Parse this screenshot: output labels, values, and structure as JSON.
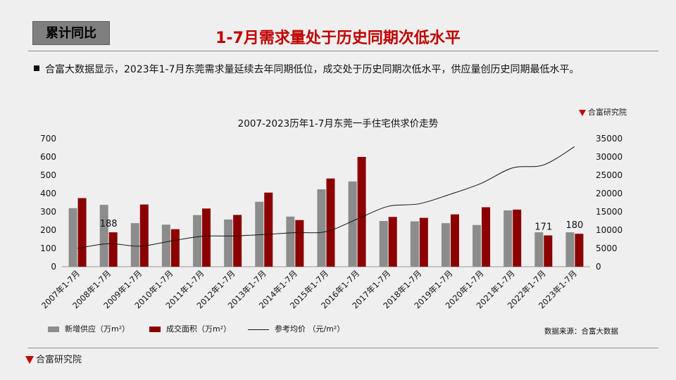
{
  "header": {
    "tag": "累计同比",
    "title": "1-7月需求量处于历史同期次低水平"
  },
  "bullet_text": "合富大数据显示，2023年1-7月东莞需求量延续去年同期低位，成交处于历史同期次低水平，供应量创历史同期最低水平。",
  "brand": "合富研究院",
  "source": "数据来源：合富大数据",
  "colors": {
    "supply": "#8c8c8c",
    "sales": "#8b0000",
    "price": "#111111",
    "title_red": "#c00000"
  },
  "chart_data": {
    "type": "bar",
    "title": "2007-2023历年1-7月东莞一手住宅供求价走势",
    "categories": [
      "2007年1-7月",
      "2008年1-7月",
      "2009年1-7月",
      "2010年1-7月",
      "2011年1-7月",
      "2012年1-7月",
      "2013年1-7月",
      "2014年1-7月",
      "2015年1-7月",
      "2016年1-7月",
      "2017年1-7月",
      "2018年1-7月",
      "2019年1-7月",
      "2020年1-7月",
      "2021年1-7月",
      "2022年1-7月",
      "2023年1-7月"
    ],
    "series": [
      {
        "name": "新增供应（万m²）",
        "type": "bar",
        "axis": "left",
        "values": [
          320,
          338,
          238,
          230,
          282,
          258,
          355,
          274,
          423,
          466,
          250,
          248,
          238,
          228,
          308,
          188,
          188
        ]
      },
      {
        "name": "成交面积（万m²）",
        "type": "bar",
        "axis": "left",
        "values": [
          375,
          188,
          340,
          205,
          318,
          283,
          405,
          255,
          482,
          600,
          272,
          267,
          286,
          325,
          312,
          171,
          180
        ]
      },
      {
        "name": "参考均价 （元/m²）",
        "type": "line",
        "axis": "right",
        "values": [
          5000,
          6300,
          5600,
          7000,
          8300,
          8400,
          8800,
          9300,
          9600,
          13000,
          16500,
          17200,
          19800,
          22800,
          27000,
          27800,
          32800
        ]
      }
    ],
    "annotations": [
      {
        "category": "2008年1-7月",
        "label": "188"
      },
      {
        "category": "2022年1-7月",
        "label": "171"
      },
      {
        "category": "2023年1-7月",
        "label": "180"
      }
    ],
    "yleft": {
      "ticks": [
        "0",
        "100",
        "200",
        "300",
        "400",
        "500",
        "600",
        "700"
      ],
      "lim": [
        0,
        700
      ]
    },
    "yright": {
      "ticks": [
        "0",
        "5000",
        "10000",
        "15000",
        "20000",
        "25000",
        "30000",
        "35000"
      ],
      "lim": [
        0,
        35000
      ]
    },
    "grid": true,
    "legend": "bottom"
  }
}
